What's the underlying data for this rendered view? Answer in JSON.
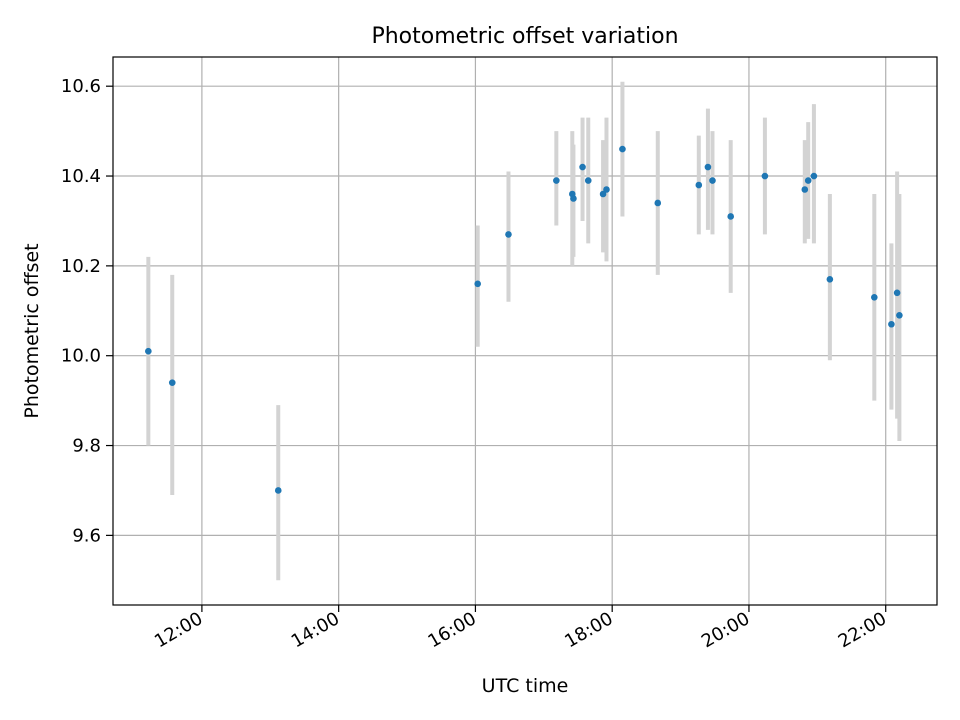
{
  "chart_data": {
    "type": "scatter",
    "title": "Photometric offset variation",
    "xlabel": "UTC time",
    "ylabel": "Photometric offset",
    "xlim": [
      "10:42",
      "22:45"
    ],
    "ylim": [
      9.445,
      10.665
    ],
    "grid": true,
    "x_ticks": [
      "12:00",
      "14:00",
      "16:00",
      "18:00",
      "20:00",
      "22:00"
    ],
    "y_ticks": [
      "9.6",
      "9.8",
      "10.0",
      "10.2",
      "10.4",
      "10.6"
    ],
    "colors": {
      "point": "#1f77b4",
      "error_bar": "#d3d3d3",
      "grid": "#b0b0b0"
    },
    "points": [
      {
        "x": "11:13",
        "y": 10.01,
        "ylow": 9.8,
        "yhigh": 10.22
      },
      {
        "x": "11:34",
        "y": 9.94,
        "ylow": 9.69,
        "yhigh": 10.18
      },
      {
        "x": "13:07",
        "y": 9.7,
        "ylow": 9.5,
        "yhigh": 9.89
      },
      {
        "x": "16:02",
        "y": 10.16,
        "ylow": 10.02,
        "yhigh": 10.29
      },
      {
        "x": "16:29",
        "y": 10.27,
        "ylow": 10.12,
        "yhigh": 10.41
      },
      {
        "x": "17:11",
        "y": 10.39,
        "ylow": 10.29,
        "yhigh": 10.5
      },
      {
        "x": "17:25",
        "y": 10.36,
        "ylow": 10.2,
        "yhigh": 10.5
      },
      {
        "x": "17:26",
        "y": 10.35,
        "ylow": 10.22,
        "yhigh": 10.47
      },
      {
        "x": "17:34",
        "y": 10.42,
        "ylow": 10.3,
        "yhigh": 10.53
      },
      {
        "x": "17:39",
        "y": 10.39,
        "ylow": 10.25,
        "yhigh": 10.53
      },
      {
        "x": "17:52",
        "y": 10.36,
        "ylow": 10.23,
        "yhigh": 10.48
      },
      {
        "x": "17:55",
        "y": 10.37,
        "ylow": 10.21,
        "yhigh": 10.53
      },
      {
        "x": "18:09",
        "y": 10.46,
        "ylow": 10.31,
        "yhigh": 10.61
      },
      {
        "x": "18:40",
        "y": 10.34,
        "ylow": 10.18,
        "yhigh": 10.5
      },
      {
        "x": "19:16",
        "y": 10.38,
        "ylow": 10.27,
        "yhigh": 10.49
      },
      {
        "x": "19:24",
        "y": 10.42,
        "ylow": 10.28,
        "yhigh": 10.55
      },
      {
        "x": "19:28",
        "y": 10.39,
        "ylow": 10.27,
        "yhigh": 10.5
      },
      {
        "x": "19:44",
        "y": 10.31,
        "ylow": 10.14,
        "yhigh": 10.48
      },
      {
        "x": "20:14",
        "y": 10.4,
        "ylow": 10.27,
        "yhigh": 10.53
      },
      {
        "x": "20:49",
        "y": 10.37,
        "ylow": 10.25,
        "yhigh": 10.48
      },
      {
        "x": "20:52",
        "y": 10.39,
        "ylow": 10.26,
        "yhigh": 10.52
      },
      {
        "x": "20:57",
        "y": 10.4,
        "ylow": 10.25,
        "yhigh": 10.56
      },
      {
        "x": "21:11",
        "y": 10.17,
        "ylow": 9.99,
        "yhigh": 10.36
      },
      {
        "x": "21:50",
        "y": 10.13,
        "ylow": 9.9,
        "yhigh": 10.36
      },
      {
        "x": "22:05",
        "y": 10.07,
        "ylow": 9.88,
        "yhigh": 10.25
      },
      {
        "x": "22:10",
        "y": 10.14,
        "ylow": 9.86,
        "yhigh": 10.41
      },
      {
        "x": "22:12",
        "y": 10.09,
        "ylow": 9.81,
        "yhigh": 10.36
      }
    ]
  }
}
